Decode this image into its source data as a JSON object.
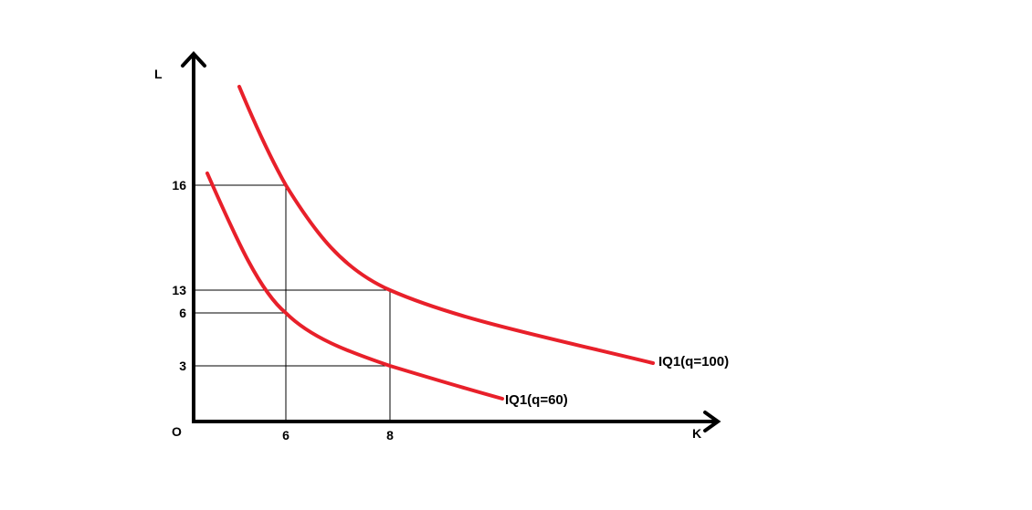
{
  "chart_data": {
    "type": "line",
    "xlabel": "K",
    "ylabel": "L",
    "origin_label": "O",
    "x_ticks": [
      {
        "value": 6,
        "label": "6"
      },
      {
        "value": 8,
        "label": "8"
      }
    ],
    "y_ticks": [
      {
        "value": 16,
        "label": "16"
      },
      {
        "value": 13,
        "label": "13"
      },
      {
        "value": 6,
        "label": "6"
      },
      {
        "value": 3,
        "label": "3"
      }
    ],
    "guides": [
      {
        "x": 6,
        "y": 16
      },
      {
        "x": 6,
        "y": 6
      },
      {
        "x": 8,
        "y": 13
      },
      {
        "x": 8,
        "y": 3
      }
    ],
    "series": [
      {
        "name": "IQ1(q=100)",
        "color": "#e8202a",
        "points": [
          [
            6,
            16
          ],
          [
            8,
            13
          ]
        ]
      },
      {
        "name": "IQ1(q=60)",
        "color": "#e8202a",
        "points": [
          [
            6,
            6
          ],
          [
            8,
            3
          ]
        ]
      }
    ]
  }
}
